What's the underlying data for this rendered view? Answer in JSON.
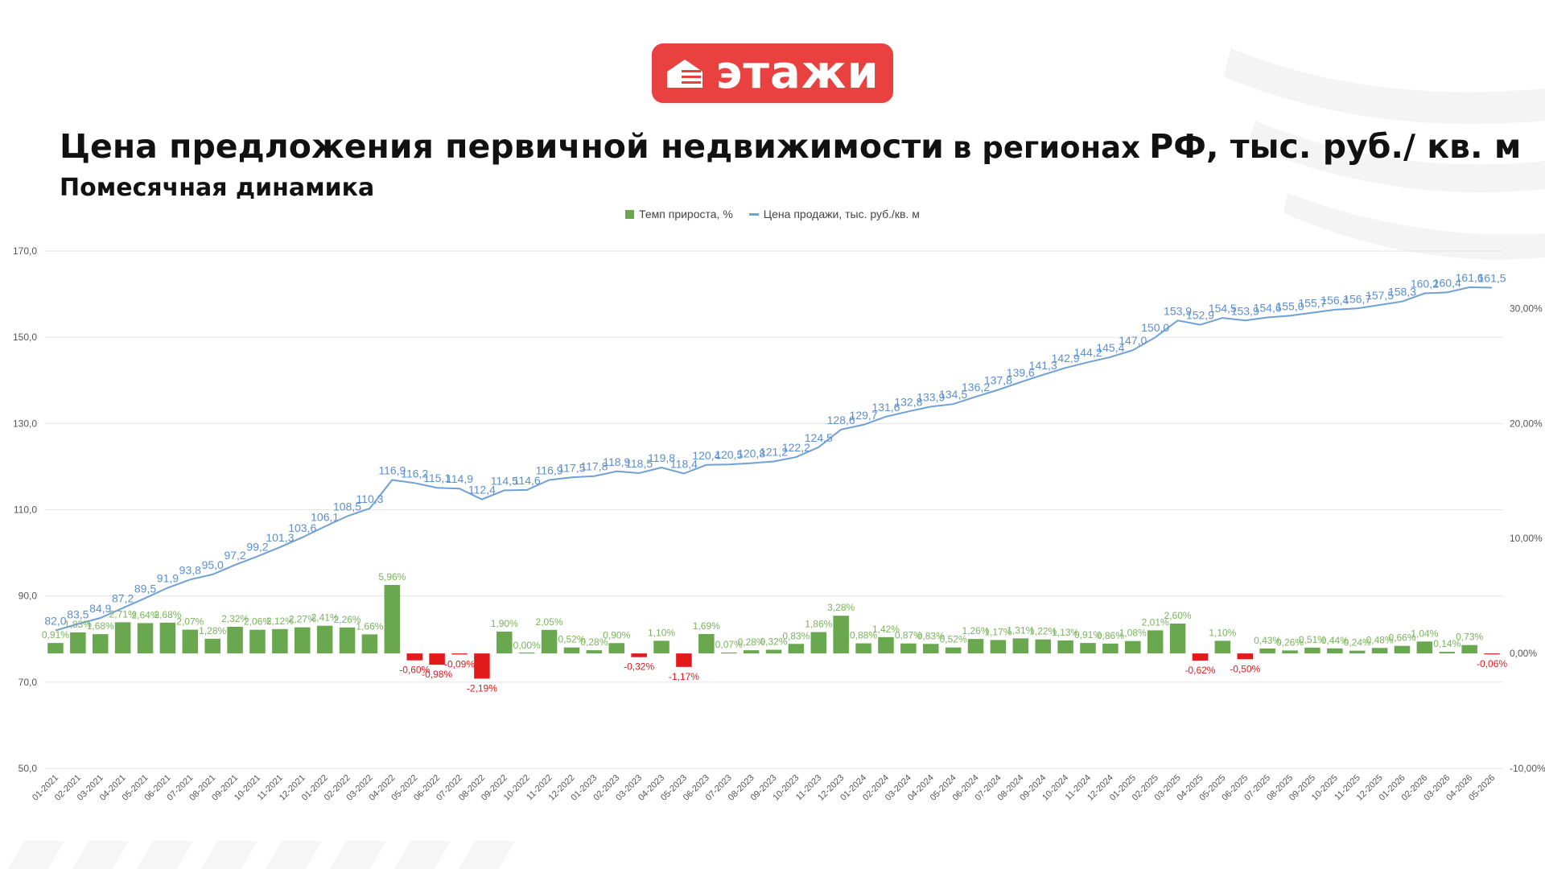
{
  "brand": {
    "logo_text": "этажи",
    "color": "#e8413f"
  },
  "heading": {
    "title_part1": "Цена предложения первичной недвижимости",
    "title_part2": "в регионах",
    "title_part3": "РФ, тыс. руб./ кв. м",
    "subtitle": "Помесячная динамика"
  },
  "legend": [
    {
      "label": "Темп прироста, %",
      "color": "#6aa84f",
      "kind": "bar"
    },
    {
      "label": "Цена продажи, тыс. руб./кв. м",
      "color": "#6fa0d8",
      "kind": "line"
    }
  ],
  "chart_data": {
    "type": "bar+line",
    "categories": [
      "01-2021",
      "02-2021",
      "03-2021",
      "04-2021",
      "05-2021",
      "06-2021",
      "07-2021",
      "08-2021",
      "09-2021",
      "10-2021",
      "11-2021",
      "12-2021",
      "01-2022",
      "02-2022",
      "03-2022",
      "04-2022",
      "05-2022",
      "06-2022",
      "07-2022",
      "08-2022",
      "09-2022",
      "10-2022",
      "11-2022",
      "12-2022",
      "01-2023",
      "02-2023",
      "03-2023",
      "04-2023",
      "05-2023",
      "06-2023",
      "07-2023",
      "08-2023",
      "09-2023",
      "10-2023",
      "11-2023",
      "12-2023",
      "01-2024",
      "02-2024",
      "03-2024",
      "04-2024",
      "05-2024",
      "06-2024",
      "07-2024",
      "08-2024",
      "09-2024",
      "10-2024",
      "11-2024",
      "12-2024",
      "01-2025",
      "02-2025",
      "03-2025",
      "04-2025",
      "05-2025",
      "06-2025",
      "07-2025",
      "08-2025",
      "09-2025",
      "10-2025",
      "11-2025",
      "12-2025",
      "01-2026",
      "02-2026",
      "03-2026",
      "04-2026",
      "05-2026"
    ],
    "price_values": [
      82.0,
      83.5,
      84.9,
      87.2,
      89.5,
      91.9,
      93.8,
      95.0,
      97.2,
      99.2,
      101.3,
      103.6,
      106.1,
      108.5,
      110.3,
      116.9,
      116.2,
      115.1,
      114.9,
      112.4,
      114.5,
      114.6,
      116.9,
      117.5,
      117.8,
      118.9,
      118.5,
      119.8,
      118.4,
      120.4,
      120.5,
      120.8,
      121.2,
      122.2,
      124.5,
      128.6,
      129.7,
      131.6,
      132.8,
      133.9,
      134.5,
      136.2,
      137.8,
      139.6,
      141.3,
      142.9,
      144.2,
      145.4,
      147.0,
      150.0,
      153.9,
      152.9,
      154.5,
      153.9,
      154.6,
      155.0,
      155.7,
      156.4,
      156.7,
      157.5,
      158.3,
      160.2,
      160.4,
      161.6,
      161.5
    ],
    "price_labels": [
      "82,0",
      "83,5",
      "84,9",
      "87,2",
      "89,5",
      "91,9",
      "93,8",
      "95,0",
      "97,2",
      "99,2",
      "101,3",
      "103,6",
      "106,1",
      "108,5",
      "110,3",
      "116,9",
      "116,2",
      "115,1",
      "114,9",
      "112,4",
      "114,5",
      "114,6",
      "116,9",
      "117,5",
      "117,8",
      "118,9",
      "118,5",
      "119,8",
      "118,4",
      "120,4",
      "120,5",
      "120,8",
      "121,2",
      "122,2",
      "124,5",
      "128,6",
      "129,7",
      "131,6",
      "132,8",
      "133,9",
      "134,5",
      "136,2",
      "137,8",
      "139,6",
      "141,3",
      "142,9",
      "144,2",
      "145,4",
      "147,0",
      "150,0",
      "153,9",
      "152,9",
      "154,5",
      "153,9",
      "154,6",
      "155,0",
      "155,7",
      "156,4",
      "156,7",
      "157,5",
      "158,3",
      "160,2",
      "160,4",
      "161,6",
      "161,5"
    ],
    "growth_values": [
      0.91,
      1.83,
      1.68,
      2.71,
      2.64,
      2.68,
      2.07,
      1.28,
      2.32,
      2.06,
      2.12,
      2.27,
      2.41,
      2.26,
      1.66,
      5.96,
      -0.6,
      -0.98,
      -0.09,
      -2.19,
      1.9,
      0.0,
      2.05,
      0.52,
      0.28,
      0.9,
      -0.32,
      1.1,
      -1.17,
      1.69,
      0.07,
      0.28,
      0.32,
      0.83,
      1.86,
      3.28,
      0.88,
      1.42,
      0.87,
      0.83,
      0.52,
      1.26,
      1.17,
      1.31,
      1.22,
      1.13,
      0.91,
      0.86,
      1.08,
      2.01,
      2.6,
      -0.62,
      1.1,
      -0.5,
      0.43,
      0.26,
      0.51,
      0.44,
      0.24,
      0.48,
      0.66,
      1.04,
      0.14,
      0.73,
      -0.06
    ],
    "growth_labels": [
      "0,91%",
      "1,83%",
      "1,68%",
      "2,71%",
      "2,64%",
      "2,68%",
      "2,07%",
      "1,28%",
      "2,32%",
      "2,06%",
      "2,12%",
      "2,27%",
      "2,41%",
      "2,26%",
      "1,66%",
      "5,96%",
      "-0,60%",
      "-0,98%",
      "-0,09%",
      "-2,19%",
      "1,90%",
      "0,00%",
      "2,05%",
      "0,52%",
      "0,28%",
      "0,90%",
      "-0,32%",
      "1,10%",
      "-1,17%",
      "1,69%",
      "0,07%",
      "0,28%",
      "0,32%",
      "0,83%",
      "1,86%",
      "3,28%",
      "0,88%",
      "1,42%",
      "0,87%",
      "0,83%",
      "0,52%",
      "1,26%",
      "1,17%",
      "1,31%",
      "1,22%",
      "1,13%",
      "0,91%",
      "0,86%",
      "1,08%",
      "2,01%",
      "2,60%",
      "-0,62%",
      "1,10%",
      "-0,50%",
      "0,43%",
      "0,26%",
      "0,51%",
      "0,44%",
      "0,24%",
      "0,48%",
      "0,66%",
      "1,04%",
      "0,14%",
      "0,73%",
      "-0,06%"
    ],
    "left_axis": {
      "min": 50,
      "max": 170,
      "ticks": [
        50,
        70,
        90,
        110,
        130,
        150,
        170
      ],
      "tick_labels": [
        "50,0",
        "70,0",
        "90,0",
        "110,0",
        "130,0",
        "150,0",
        "170,0"
      ]
    },
    "right_axis": {
      "min": -10,
      "max": 35,
      "ticks": [
        -10,
        0,
        10,
        20,
        30
      ],
      "tick_labels": [
        "-10,00%",
        "0,00%",
        "10,00%",
        "20,00%",
        "30,00%"
      ]
    },
    "grid": true,
    "legend_position": "top",
    "colors": {
      "positive_bar": "#6aa84f",
      "negative_bar": "#e31a1c",
      "line": "#6fa0d8",
      "price_label": "#5b8fd0",
      "positive_label": "#79b35c",
      "negative_label": "#e31a1c",
      "axis_text": "#555555",
      "grid": "#e4e4e4"
    }
  }
}
